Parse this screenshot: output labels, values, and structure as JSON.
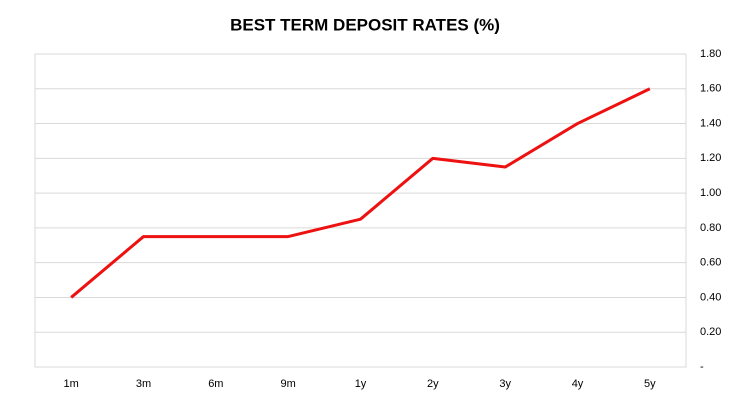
{
  "chart_data": {
    "type": "line",
    "title": "BEST TERM DEPOSIT RATES (%)",
    "categories": [
      "1m",
      "3m",
      "6m",
      "9m",
      "1y",
      "2y",
      "3y",
      "4y",
      "5y"
    ],
    "values": [
      0.4,
      0.75,
      0.75,
      0.75,
      0.85,
      1.2,
      1.15,
      1.4,
      1.6
    ],
    "color": "#ee1111",
    "ylim": [
      0,
      1.8
    ],
    "yticks": [
      {
        "value": 0,
        "label": "-"
      },
      {
        "value": 0.2,
        "label": "0.20"
      },
      {
        "value": 0.4,
        "label": "0.40"
      },
      {
        "value": 0.6,
        "label": "0.60"
      },
      {
        "value": 0.8,
        "label": "0.80"
      },
      {
        "value": 1.0,
        "label": "1.00"
      },
      {
        "value": 1.2,
        "label": "1.20"
      },
      {
        "value": 1.4,
        "label": "1.40"
      },
      {
        "value": 1.6,
        "label": "1.60"
      },
      {
        "value": 1.8,
        "label": "1.80"
      }
    ],
    "grid": true
  }
}
